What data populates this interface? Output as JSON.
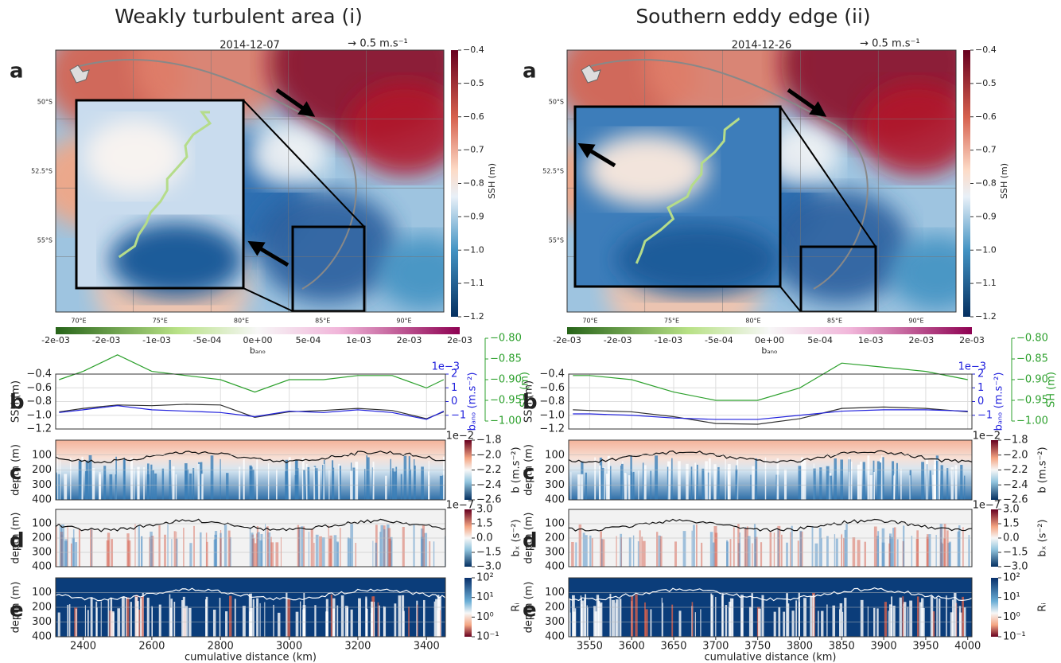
{
  "columns": [
    {
      "heading": "Weakly turbulent area (i)",
      "map": {
        "panel": "a",
        "date": "2014-12-07",
        "scale_label": "→  0.5 m.s⁻¹",
        "lon_ticks": [
          "70°E",
          "75°E",
          "80°E",
          "85°E",
          "90°E"
        ],
        "lat_ticks": [
          "50°S",
          "52.5°S",
          "55°S"
        ],
        "ssh_colorbar": {
          "label": "SSH (m)",
          "lim": [
            -1.2,
            -0.4
          ],
          "ticks": [
            {
              "value": -0.4,
              "label": "−0.4"
            },
            {
              "value": -0.5,
              "label": "−0.5"
            },
            {
              "value": -0.6,
              "label": "−0.6"
            },
            {
              "value": -0.7,
              "label": "−0.7"
            },
            {
              "value": -0.8,
              "label": "−0.8"
            },
            {
              "value": -0.9,
              "label": "−0.9"
            },
            {
              "value": -1.0,
              "label": "−1.0"
            },
            {
              "value": -1.1,
              "label": "−1.1"
            },
            {
              "value": -1.2,
              "label": "−1.2"
            }
          ]
        },
        "bano_colorbar": {
          "label": "bₐₙₒ",
          "ticks": [
            "-2e-03",
            "-2e-03",
            "-1e-03",
            "-5e-04",
            "0e+00",
            "5e-04",
            "1e-03",
            "2e-03",
            "2e-03"
          ]
        }
      },
      "timeseries": {
        "panel": "b",
        "type": "line",
        "x": [
          2330,
          2400,
          2500,
          2600,
          2700,
          2800,
          2900,
          3000,
          3100,
          3200,
          3300,
          3400,
          3450
        ],
        "ylabel": "SSH (m)",
        "ylim": [
          -1.2,
          -0.4
        ],
        "yticks": [
          {
            "value": -0.4,
            "label": "−0.4"
          },
          {
            "value": -0.6,
            "label": "−0.6"
          },
          {
            "value": -0.8,
            "label": "−0.8"
          },
          {
            "value": -1.0,
            "label": "−1.0"
          },
          {
            "value": -1.2,
            "label": "−1.2"
          }
        ],
        "y2label": "bₐₙₒ (m.s⁻²)",
        "y2offset": "1e−3",
        "y2lim": [
          -2,
          2
        ],
        "y2ticks": [
          {
            "value": -1,
            "label": "−1"
          },
          0,
          1,
          2
        ],
        "y3label": "SH (m)",
        "y3lim": [
          -1.0,
          -0.8
        ],
        "y3ticks": [
          {
            "value": -0.8,
            "label": "−0.80"
          },
          {
            "value": -0.85,
            "label": "−0.85"
          },
          {
            "value": -0.9,
            "label": "−0.90"
          },
          {
            "value": -0.95,
            "label": "−0.95"
          },
          {
            "value": -1.0,
            "label": "−1.00"
          }
        ],
        "series": [
          {
            "name": "SSH",
            "color": "#333333",
            "axis": "y",
            "values": [
              -0.95,
              -0.9,
              -0.85,
              -0.86,
              -0.84,
              -0.85,
              -1.03,
              -0.95,
              -0.93,
              -0.9,
              -0.93,
              -1.05,
              -0.95
            ]
          },
          {
            "name": "bano",
            "color": "#2222dd",
            "axis": "y2",
            "values": [
              -0.8,
              -0.6,
              -0.3,
              -0.6,
              -0.7,
              -0.8,
              -1.1,
              -0.7,
              -0.8,
              -0.6,
              -0.8,
              -1.3,
              -0.7
            ]
          },
          {
            "name": "SH",
            "color": "#2ca02c",
            "axis": "y3",
            "values": [
              -0.9,
              -0.88,
              -0.84,
              -0.88,
              -0.89,
              -0.9,
              -0.93,
              -0.9,
              -0.9,
              -0.89,
              -0.89,
              -0.92,
              -0.9
            ]
          }
        ]
      },
      "sections": [
        {
          "panel": "c",
          "ylabel": "depth (m)",
          "ylim": [
            0,
            400
          ],
          "yticks": [
            100,
            200,
            300,
            400
          ],
          "colorbar": {
            "label": "b (m.s⁻²)",
            "offset": "1e−2",
            "lim": [
              -2.6,
              -1.8
            ],
            "ticks": [
              {
                "value": -1.8,
                "label": "−1.8"
              },
              {
                "value": -2.0,
                "label": "−2.0"
              },
              {
                "value": -2.2,
                "label": "−2.2"
              },
              {
                "value": -2.4,
                "label": "−2.4"
              },
              {
                "value": -2.6,
                "label": "−2.6"
              }
            ]
          }
        },
        {
          "panel": "d",
          "ylabel": "depth (m)",
          "ylim": [
            0,
            400
          ],
          "yticks": [
            100,
            200,
            300,
            400
          ],
          "colorbar": {
            "label": "bₓ (s⁻²)",
            "offset": "1e−7",
            "lim": [
              -3.0,
              3.0
            ],
            "ticks": [
              {
                "value": 3.0,
                "label": "3.0"
              },
              {
                "value": 1.5,
                "label": "1.5"
              },
              {
                "value": 0.0,
                "label": "0.0"
              },
              {
                "value": -1.5,
                "label": "−1.5"
              },
              {
                "value": -3.0,
                "label": "−3.0"
              }
            ]
          }
        },
        {
          "panel": "e",
          "ylabel": "depth (m)",
          "ylim": [
            0,
            400
          ],
          "yticks": [
            100,
            200,
            300,
            400
          ],
          "colorbar": {
            "label": "Rᵢ",
            "log": true,
            "lim": [
              0.1,
              100
            ],
            "ticks": [
              {
                "value": 100,
                "label": "10²"
              },
              {
                "value": 10,
                "label": "10¹"
              },
              {
                "value": 1,
                "label": "10⁰"
              },
              {
                "value": 0.1,
                "label": "10⁻¹"
              }
            ]
          }
        }
      ],
      "xlabel": "cumulative distance (km)",
      "xlim": [
        2320,
        3455
      ],
      "xticks": [
        2400,
        2600,
        2800,
        3000,
        3200,
        3400
      ]
    },
    {
      "heading": "Southern eddy edge (ii)",
      "map": {
        "panel": "a",
        "date": "2014-12-26",
        "scale_label": "→  0.5 m.s⁻¹",
        "lon_ticks": [
          "70°E",
          "75°E",
          "80°E",
          "85°E",
          "90°E"
        ],
        "lat_ticks": [
          "50°S",
          "52.5°S",
          "55°S"
        ],
        "ssh_colorbar": {
          "label": "SSH (m)",
          "lim": [
            -1.2,
            -0.4
          ],
          "ticks": [
            {
              "value": -0.4,
              "label": "−0.4"
            },
            {
              "value": -0.5,
              "label": "−0.5"
            },
            {
              "value": -0.6,
              "label": "−0.6"
            },
            {
              "value": -0.7,
              "label": "−0.7"
            },
            {
              "value": -0.8,
              "label": "−0.8"
            },
            {
              "value": -0.9,
              "label": "−0.9"
            },
            {
              "value": -1.0,
              "label": "−1.0"
            },
            {
              "value": -1.1,
              "label": "−1.1"
            },
            {
              "value": -1.2,
              "label": "−1.2"
            }
          ]
        },
        "bano_colorbar": {
          "label": "bₐₙₒ",
          "ticks": [
            "-2e-03",
            "-2e-03",
            "-1e-03",
            "-5e-04",
            "0e+00",
            "5e-04",
            "1e-03",
            "2e-03",
            "2e-03"
          ]
        }
      },
      "timeseries": {
        "panel": "b",
        "type": "line",
        "x": [
          3530,
          3550,
          3600,
          3650,
          3700,
          3750,
          3800,
          3850,
          3900,
          3950,
          4000
        ],
        "ylabel": "SSH (m)",
        "ylim": [
          -1.2,
          -0.4
        ],
        "yticks": [
          {
            "value": -0.4,
            "label": "−0.4"
          },
          {
            "value": -0.6,
            "label": "−0.6"
          },
          {
            "value": -0.8,
            "label": "−0.8"
          },
          {
            "value": -1.0,
            "label": "−1.0"
          },
          {
            "value": -1.2,
            "label": "−1.2"
          }
        ],
        "y2label": "bₐₙₒ (m.s⁻²)",
        "y2offset": "1e−3",
        "y2lim": [
          -2,
          2
        ],
        "y2ticks": [
          {
            "value": -1,
            "label": "−1"
          },
          0,
          1,
          2
        ],
        "y3label": "SH (m)",
        "y3lim": [
          -1.0,
          -0.8
        ],
        "y3ticks": [
          {
            "value": -0.8,
            "label": "−0.80"
          },
          {
            "value": -0.85,
            "label": "−0.85"
          },
          {
            "value": -0.9,
            "label": "−0.90"
          },
          {
            "value": -0.95,
            "label": "−0.95"
          },
          {
            "value": -1.0,
            "label": "−1.00"
          }
        ],
        "series": [
          {
            "name": "SSH",
            "color": "#333333",
            "axis": "y",
            "values": [
              -0.92,
              -0.93,
              -0.95,
              -1.02,
              -1.12,
              -1.13,
              -1.05,
              -0.9,
              -0.88,
              -0.9,
              -0.95
            ]
          },
          {
            "name": "bano",
            "color": "#2222dd",
            "axis": "y2",
            "values": [
              -0.9,
              -0.9,
              -1.0,
              -1.2,
              -1.3,
              -1.3,
              -1.0,
              -0.7,
              -0.6,
              -0.6,
              -0.7
            ]
          },
          {
            "name": "SH",
            "color": "#2ca02c",
            "axis": "y3",
            "values": [
              -0.89,
              -0.89,
              -0.9,
              -0.93,
              -0.95,
              -0.95,
              -0.92,
              -0.86,
              -0.87,
              -0.88,
              -0.9
            ]
          }
        ]
      },
      "sections": [
        {
          "panel": "c",
          "ylabel": "depth (m)",
          "ylim": [
            0,
            400
          ],
          "yticks": [
            100,
            200,
            300,
            400
          ],
          "colorbar": {
            "label": "b (m.s⁻²)",
            "offset": "1e−2",
            "lim": [
              -2.6,
              -1.8
            ],
            "ticks": [
              {
                "value": -1.8,
                "label": "−1.8"
              },
              {
                "value": -2.0,
                "label": "−2.0"
              },
              {
                "value": -2.2,
                "label": "−2.2"
              },
              {
                "value": -2.4,
                "label": "−2.4"
              },
              {
                "value": -2.6,
                "label": "−2.6"
              }
            ]
          }
        },
        {
          "panel": "d",
          "ylabel": "depth (m)",
          "ylim": [
            0,
            400
          ],
          "yticks": [
            100,
            200,
            300,
            400
          ],
          "colorbar": {
            "label": "bₓ (s⁻²)",
            "offset": "1e−7",
            "lim": [
              -3.0,
              3.0
            ],
            "ticks": [
              {
                "value": 3.0,
                "label": "3.0"
              },
              {
                "value": 1.5,
                "label": "1.5"
              },
              {
                "value": 0.0,
                "label": "0.0"
              },
              {
                "value": -1.5,
                "label": "−1.5"
              },
              {
                "value": -3.0,
                "label": "−3.0"
              }
            ]
          }
        },
        {
          "panel": "e",
          "ylabel": "depth (m)",
          "ylim": [
            0,
            400
          ],
          "yticks": [
            100,
            200,
            300,
            400
          ],
          "colorbar": {
            "label": "Rᵢ",
            "log": true,
            "lim": [
              0.1,
              100
            ],
            "ticks": [
              {
                "value": 100,
                "label": "10²"
              },
              {
                "value": 10,
                "label": "10¹"
              },
              {
                "value": 1,
                "label": "10⁰"
              },
              {
                "value": 0.1,
                "label": "10⁻¹"
              }
            ]
          }
        }
      ],
      "xlabel": "cumulative distance (km)",
      "xlim": [
        3525,
        4005
      ],
      "xticks": [
        3550,
        3600,
        3650,
        3700,
        3750,
        3800,
        3850,
        3900,
        3950,
        4000
      ]
    }
  ]
}
